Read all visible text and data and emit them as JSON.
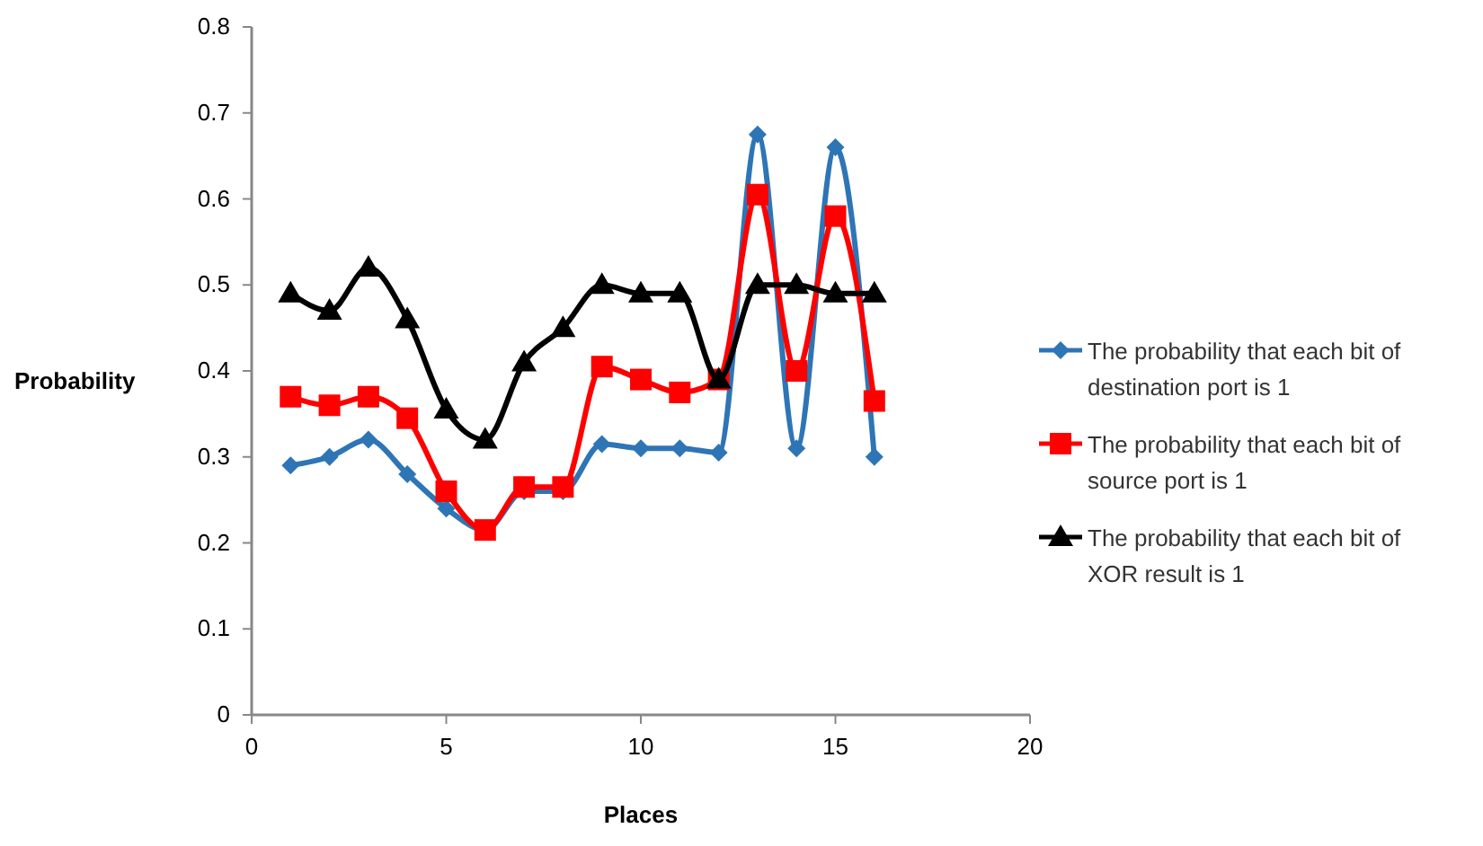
{
  "chart_data": {
    "type": "line",
    "xlabel": "Places",
    "ylabel": "Probability",
    "x": [
      1,
      2,
      3,
      4,
      5,
      6,
      7,
      8,
      9,
      10,
      11,
      12,
      13,
      14,
      15,
      16
    ],
    "series": [
      {
        "name": "The probability that each bit of destination port is 1",
        "color": "#2e75b6",
        "marker": "diamond",
        "values": [
          0.29,
          0.3,
          0.32,
          0.28,
          0.24,
          0.215,
          0.26,
          0.26,
          0.315,
          0.31,
          0.31,
          0.305,
          0.675,
          0.31,
          0.66,
          0.3
        ]
      },
      {
        "name": "The probability that each bit of source port is 1",
        "color": "#ff0000",
        "marker": "square",
        "values": [
          0.37,
          0.36,
          0.37,
          0.345,
          0.26,
          0.215,
          0.265,
          0.265,
          0.405,
          0.39,
          0.375,
          0.39,
          0.605,
          0.4,
          0.58,
          0.365
        ]
      },
      {
        "name": "The probability that each bit of XOR result is 1",
        "color": "#000000",
        "marker": "triangle",
        "values": [
          0.49,
          0.47,
          0.52,
          0.46,
          0.355,
          0.32,
          0.41,
          0.45,
          0.5,
          0.49,
          0.49,
          0.39,
          0.5,
          0.5,
          0.49,
          0.49
        ]
      }
    ],
    "xlim": [
      0,
      20
    ],
    "xticks": [
      0,
      5,
      10,
      15,
      20
    ],
    "ylim": [
      0,
      0.8
    ],
    "yticks": [
      0,
      0.1,
      0.2,
      0.3,
      0.4,
      0.5,
      0.6,
      0.7,
      0.8
    ],
    "grid": false,
    "legend": "right"
  }
}
